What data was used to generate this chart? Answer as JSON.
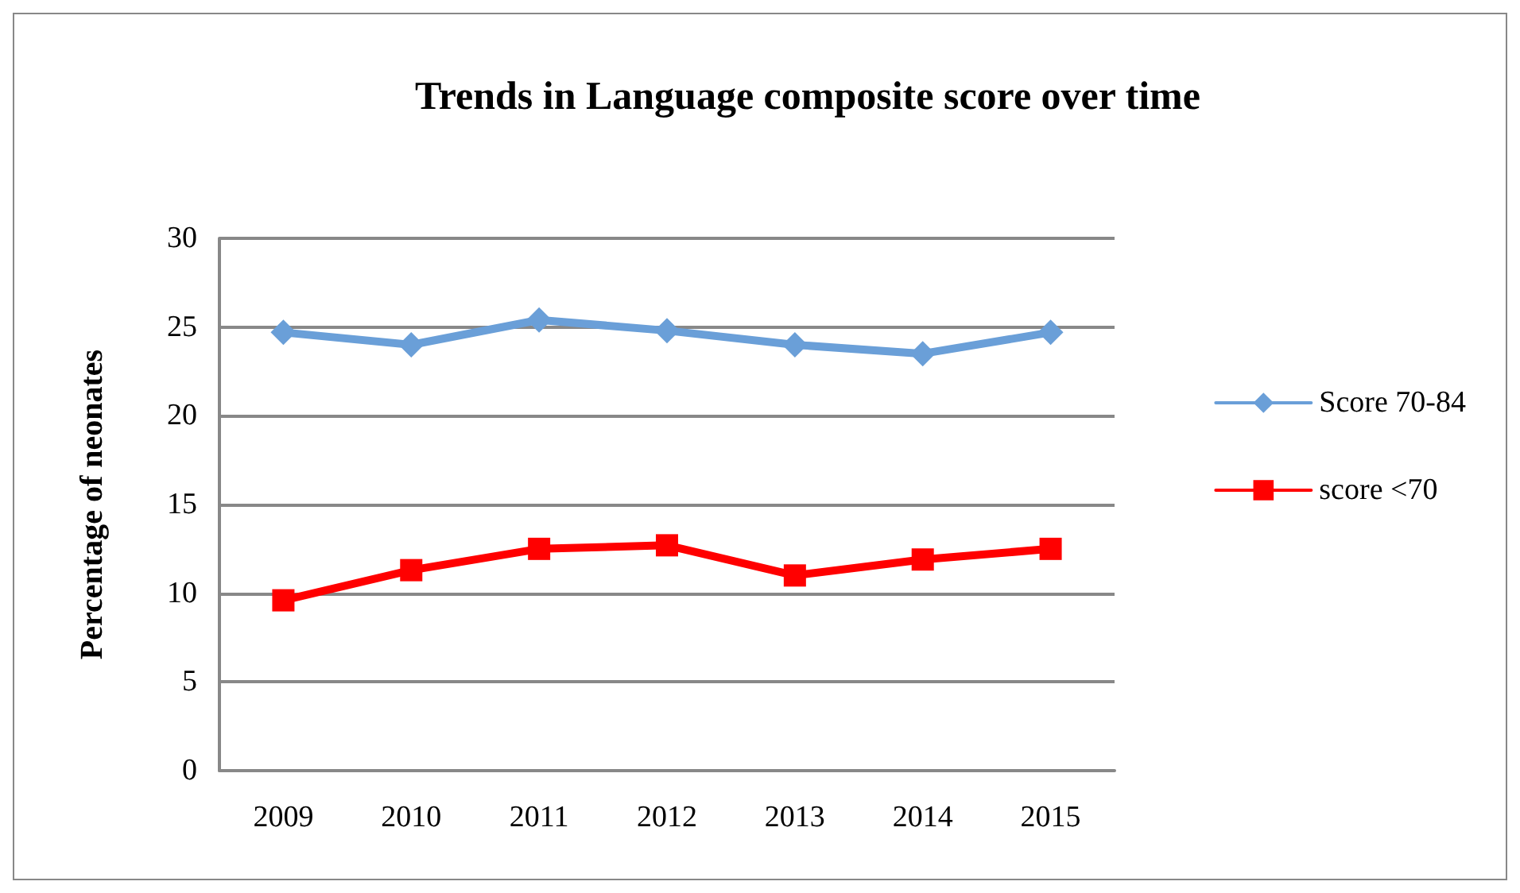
{
  "chart_data": {
    "type": "line",
    "title": "Trends in Language composite score over time",
    "ylabel": "Percentage of neonates",
    "categories": [
      "2009",
      "2010",
      "2011",
      "2012",
      "2013",
      "2014",
      "2015"
    ],
    "series": [
      {
        "name": "Score 70-84",
        "color": "#6a9fd8",
        "marker": "diamond",
        "values": [
          24.7,
          24.0,
          25.4,
          24.8,
          24.0,
          23.5,
          24.7
        ]
      },
      {
        "name": "score <70",
        "color": "#ff0000",
        "marker": "square",
        "values": [
          9.6,
          11.3,
          12.5,
          12.7,
          11.0,
          11.9,
          12.5
        ]
      }
    ],
    "ylim": [
      0,
      30
    ],
    "yticks": [
      0,
      5,
      10,
      15,
      20,
      25,
      30
    ],
    "grid": "y",
    "legend": "right"
  }
}
